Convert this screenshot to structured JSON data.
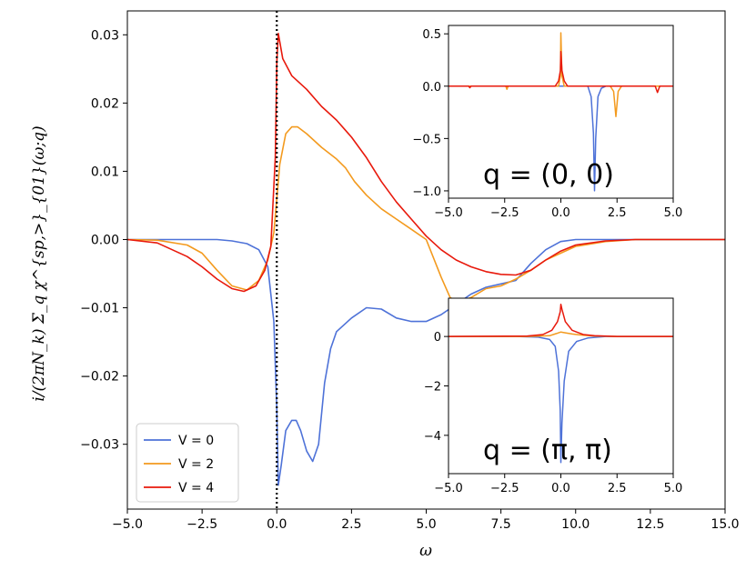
{
  "chart_data": {
    "type": "line",
    "xlabel": "ω",
    "ylabel": "i/(2πN_k) Σ_q χ^{sp,>}_{01}(ω;q)",
    "xlim": [
      -5,
      15
    ],
    "ylim": [
      -0.0395,
      0.0335
    ],
    "xticks": [
      "−5.0",
      "−2.5",
      "0.0",
      "2.5",
      "5.0",
      "7.5",
      "10.0",
      "12.5",
      "15.0"
    ],
    "yticks": [
      "−0.03",
      "−0.02",
      "−0.01",
      "0.00",
      "0.01",
      "0.02",
      "0.03"
    ],
    "grid": false,
    "vline": {
      "x": 0,
      "style": "dotted"
    },
    "legend": {
      "placement": "lower-left",
      "entries": [
        "V = 0",
        "V = 2",
        "V = 4"
      ]
    },
    "series": [
      {
        "name": "V = 0",
        "color": "#4e72d8",
        "points": [
          [
            -5,
            0
          ],
          [
            -3,
            0
          ],
          [
            -2,
            0
          ],
          [
            -1.5,
            -0.0002
          ],
          [
            -1,
            -0.0006
          ],
          [
            -0.6,
            -0.0015
          ],
          [
            -0.3,
            -0.004
          ],
          [
            -0.1,
            -0.012
          ],
          [
            0,
            -0.025
          ],
          [
            0.05,
            -0.036
          ],
          [
            0.15,
            -0.033
          ],
          [
            0.3,
            -0.028
          ],
          [
            0.5,
            -0.0265
          ],
          [
            0.65,
            -0.0265
          ],
          [
            0.8,
            -0.028
          ],
          [
            1,
            -0.031
          ],
          [
            1.2,
            -0.0325
          ],
          [
            1.4,
            -0.03
          ],
          [
            1.6,
            -0.021
          ],
          [
            1.8,
            -0.016
          ],
          [
            2,
            -0.0135
          ],
          [
            2.5,
            -0.0115
          ],
          [
            3,
            -0.01
          ],
          [
            3.5,
            -0.0102
          ],
          [
            4,
            -0.0115
          ],
          [
            4.5,
            -0.012
          ],
          [
            5,
            -0.012
          ],
          [
            5.5,
            -0.011
          ],
          [
            6,
            -0.0095
          ],
          [
            6.5,
            -0.008
          ],
          [
            7,
            -0.007
          ],
          [
            7.5,
            -0.0065
          ],
          [
            8,
            -0.006
          ],
          [
            8.5,
            -0.0035
          ],
          [
            9,
            -0.0015
          ],
          [
            9.5,
            -0.0003
          ],
          [
            10,
            0
          ],
          [
            15,
            0
          ]
        ]
      },
      {
        "name": "V = 2",
        "color": "#f39a1e",
        "points": [
          [
            -5,
            0
          ],
          [
            -4,
            -0.0001
          ],
          [
            -3,
            -0.0008
          ],
          [
            -2.5,
            -0.002
          ],
          [
            -2,
            -0.0045
          ],
          [
            -1.5,
            -0.0068
          ],
          [
            -1,
            -0.0074
          ],
          [
            -0.6,
            -0.006
          ],
          [
            -0.3,
            -0.003
          ],
          [
            -0.1,
            0.001
          ],
          [
            0,
            0.006
          ],
          [
            0.1,
            0.011
          ],
          [
            0.3,
            0.0155
          ],
          [
            0.5,
            0.0165
          ],
          [
            0.7,
            0.0165
          ],
          [
            1,
            0.0155
          ],
          [
            1.5,
            0.0135
          ],
          [
            2,
            0.0118
          ],
          [
            2.3,
            0.0105
          ],
          [
            2.6,
            0.0085
          ],
          [
            3,
            0.0065
          ],
          [
            3.5,
            0.0045
          ],
          [
            4,
            0.003
          ],
          [
            4.5,
            0.0015
          ],
          [
            5,
            0
          ],
          [
            5.5,
            -0.0055
          ],
          [
            5.8,
            -0.0085
          ],
          [
            6.1,
            -0.0092
          ],
          [
            6.5,
            -0.0085
          ],
          [
            7,
            -0.0072
          ],
          [
            7.5,
            -0.0068
          ],
          [
            8,
            -0.0058
          ],
          [
            8.5,
            -0.0045
          ],
          [
            9,
            -0.003
          ],
          [
            9.5,
            -0.002
          ],
          [
            10,
            -0.001
          ],
          [
            11,
            -0.0003
          ],
          [
            12,
            0
          ],
          [
            15,
            0
          ]
        ]
      },
      {
        "name": "V = 4",
        "color": "#e8190c",
        "points": [
          [
            -5,
            0
          ],
          [
            -4,
            -0.0005
          ],
          [
            -3,
            -0.0025
          ],
          [
            -2.5,
            -0.004
          ],
          [
            -2,
            -0.0058
          ],
          [
            -1.5,
            -0.0072
          ],
          [
            -1.1,
            -0.0076
          ],
          [
            -0.7,
            -0.0068
          ],
          [
            -0.4,
            -0.0045
          ],
          [
            -0.2,
            -0.001
          ],
          [
            -0.05,
            0.012
          ],
          [
            0,
            0.026
          ],
          [
            0.05,
            0.0302
          ],
          [
            0.1,
            0.029
          ],
          [
            0.2,
            0.0265
          ],
          [
            0.5,
            0.024
          ],
          [
            1,
            0.022
          ],
          [
            1.5,
            0.0195
          ],
          [
            2,
            0.0175
          ],
          [
            2.5,
            0.015
          ],
          [
            3,
            0.012
          ],
          [
            3.5,
            0.0085
          ],
          [
            4,
            0.0055
          ],
          [
            4.5,
            0.003
          ],
          [
            5,
            0.0005
          ],
          [
            5.5,
            -0.0015
          ],
          [
            6,
            -0.003
          ],
          [
            6.5,
            -0.004
          ],
          [
            7,
            -0.0047
          ],
          [
            7.5,
            -0.0051
          ],
          [
            8,
            -0.0052
          ],
          [
            8.5,
            -0.0045
          ],
          [
            9,
            -0.003
          ],
          [
            9.5,
            -0.0017
          ],
          [
            10,
            -0.0008
          ],
          [
            11,
            -0.0002
          ],
          [
            12,
            0
          ],
          [
            15,
            0
          ]
        ]
      }
    ],
    "insets": [
      {
        "title": "q = (0, 0)",
        "xlim": [
          -5,
          5
        ],
        "ylim": [
          -1.07,
          0.58
        ],
        "xticks": [
          "−5.0",
          "−2.5",
          "0.0",
          "2.5",
          "5.0"
        ],
        "yticks": [
          "0.5",
          "0.0",
          "−0.5",
          "−1.0"
        ],
        "series": [
          {
            "name": "V = 0",
            "color": "#4e72d8",
            "points": [
              [
                -5,
                0
              ],
              [
                1.2,
                0
              ],
              [
                1.35,
                -0.1
              ],
              [
                1.45,
                -0.45
              ],
              [
                1.5,
                -1.0
              ],
              [
                1.55,
                -0.5
              ],
              [
                1.65,
                -0.1
              ],
              [
                1.8,
                -0.02
              ],
              [
                2,
                0
              ],
              [
                5,
                0
              ]
            ]
          },
          {
            "name": "V = 2",
            "color": "#f39a1e",
            "points": [
              [
                -5,
                0
              ],
              [
                -2.45,
                0
              ],
              [
                -2.4,
                -0.03
              ],
              [
                -2.35,
                0
              ],
              [
                -0.1,
                0
              ],
              [
                -0.02,
                0.1
              ],
              [
                0,
                0.51
              ],
              [
                0.05,
                0.1
              ],
              [
                0.15,
                0
              ],
              [
                2.2,
                0
              ],
              [
                2.35,
                -0.05
              ],
              [
                2.45,
                -0.29
              ],
              [
                2.55,
                -0.05
              ],
              [
                2.7,
                0
              ],
              [
                5,
                0
              ]
            ]
          },
          {
            "name": "V = 4",
            "color": "#e8190c",
            "points": [
              [
                -5,
                0
              ],
              [
                -4.1,
                0
              ],
              [
                -4.05,
                -0.015
              ],
              [
                -4,
                0
              ],
              [
                -0.25,
                0
              ],
              [
                -0.1,
                0.05
              ],
              [
                -0.02,
                0.15
              ],
              [
                0,
                0.33
              ],
              [
                0.05,
                0.15
              ],
              [
                0.15,
                0.05
              ],
              [
                0.3,
                0
              ],
              [
                4.2,
                0
              ],
              [
                4.3,
                -0.06
              ],
              [
                4.4,
                0
              ],
              [
                5,
                0
              ]
            ]
          }
        ]
      },
      {
        "title": "q = (π, π)",
        "xlim": [
          -5,
          5
        ],
        "ylim": [
          -5.55,
          1.55
        ],
        "xticks": [
          "−5.0",
          "−2.5",
          "0.0",
          "2.5",
          "5.0"
        ],
        "yticks": [
          "0",
          "−2",
          "−4"
        ],
        "series": [
          {
            "name": "V = 0",
            "color": "#4e72d8",
            "points": [
              [
                -5,
                0
              ],
              [
                -2,
                0
              ],
              [
                -1,
                -0.03
              ],
              [
                -0.5,
                -0.12
              ],
              [
                -0.25,
                -0.4
              ],
              [
                -0.1,
                -1.4
              ],
              [
                -0.03,
                -3.0
              ],
              [
                0,
                -5.1
              ],
              [
                0.05,
                -3.5
              ],
              [
                0.15,
                -1.8
              ],
              [
                0.35,
                -0.6
              ],
              [
                0.7,
                -0.2
              ],
              [
                1.2,
                -0.06
              ],
              [
                2,
                0
              ],
              [
                5,
                0
              ]
            ]
          },
          {
            "name": "V = 2",
            "color": "#f39a1e",
            "points": [
              [
                -5,
                0
              ],
              [
                -1.5,
                0
              ],
              [
                -0.5,
                0.03
              ],
              [
                -0.2,
                0.12
              ],
              [
                0,
                0.18
              ],
              [
                0.2,
                0.15
              ],
              [
                0.5,
                0.1
              ],
              [
                1,
                0.05
              ],
              [
                1.5,
                0.02
              ],
              [
                2.5,
                0
              ],
              [
                5,
                0
              ]
            ]
          },
          {
            "name": "V = 4",
            "color": "#e8190c",
            "points": [
              [
                -5,
                0
              ],
              [
                -1.5,
                0.02
              ],
              [
                -0.8,
                0.08
              ],
              [
                -0.4,
                0.25
              ],
              [
                -0.15,
                0.6
              ],
              [
                -0.03,
                1.0
              ],
              [
                0,
                1.3
              ],
              [
                0.05,
                1.1
              ],
              [
                0.2,
                0.6
              ],
              [
                0.5,
                0.25
              ],
              [
                1,
                0.08
              ],
              [
                1.5,
                0.03
              ],
              [
                2.5,
                0
              ],
              [
                5,
                0
              ]
            ]
          }
        ]
      }
    ]
  }
}
